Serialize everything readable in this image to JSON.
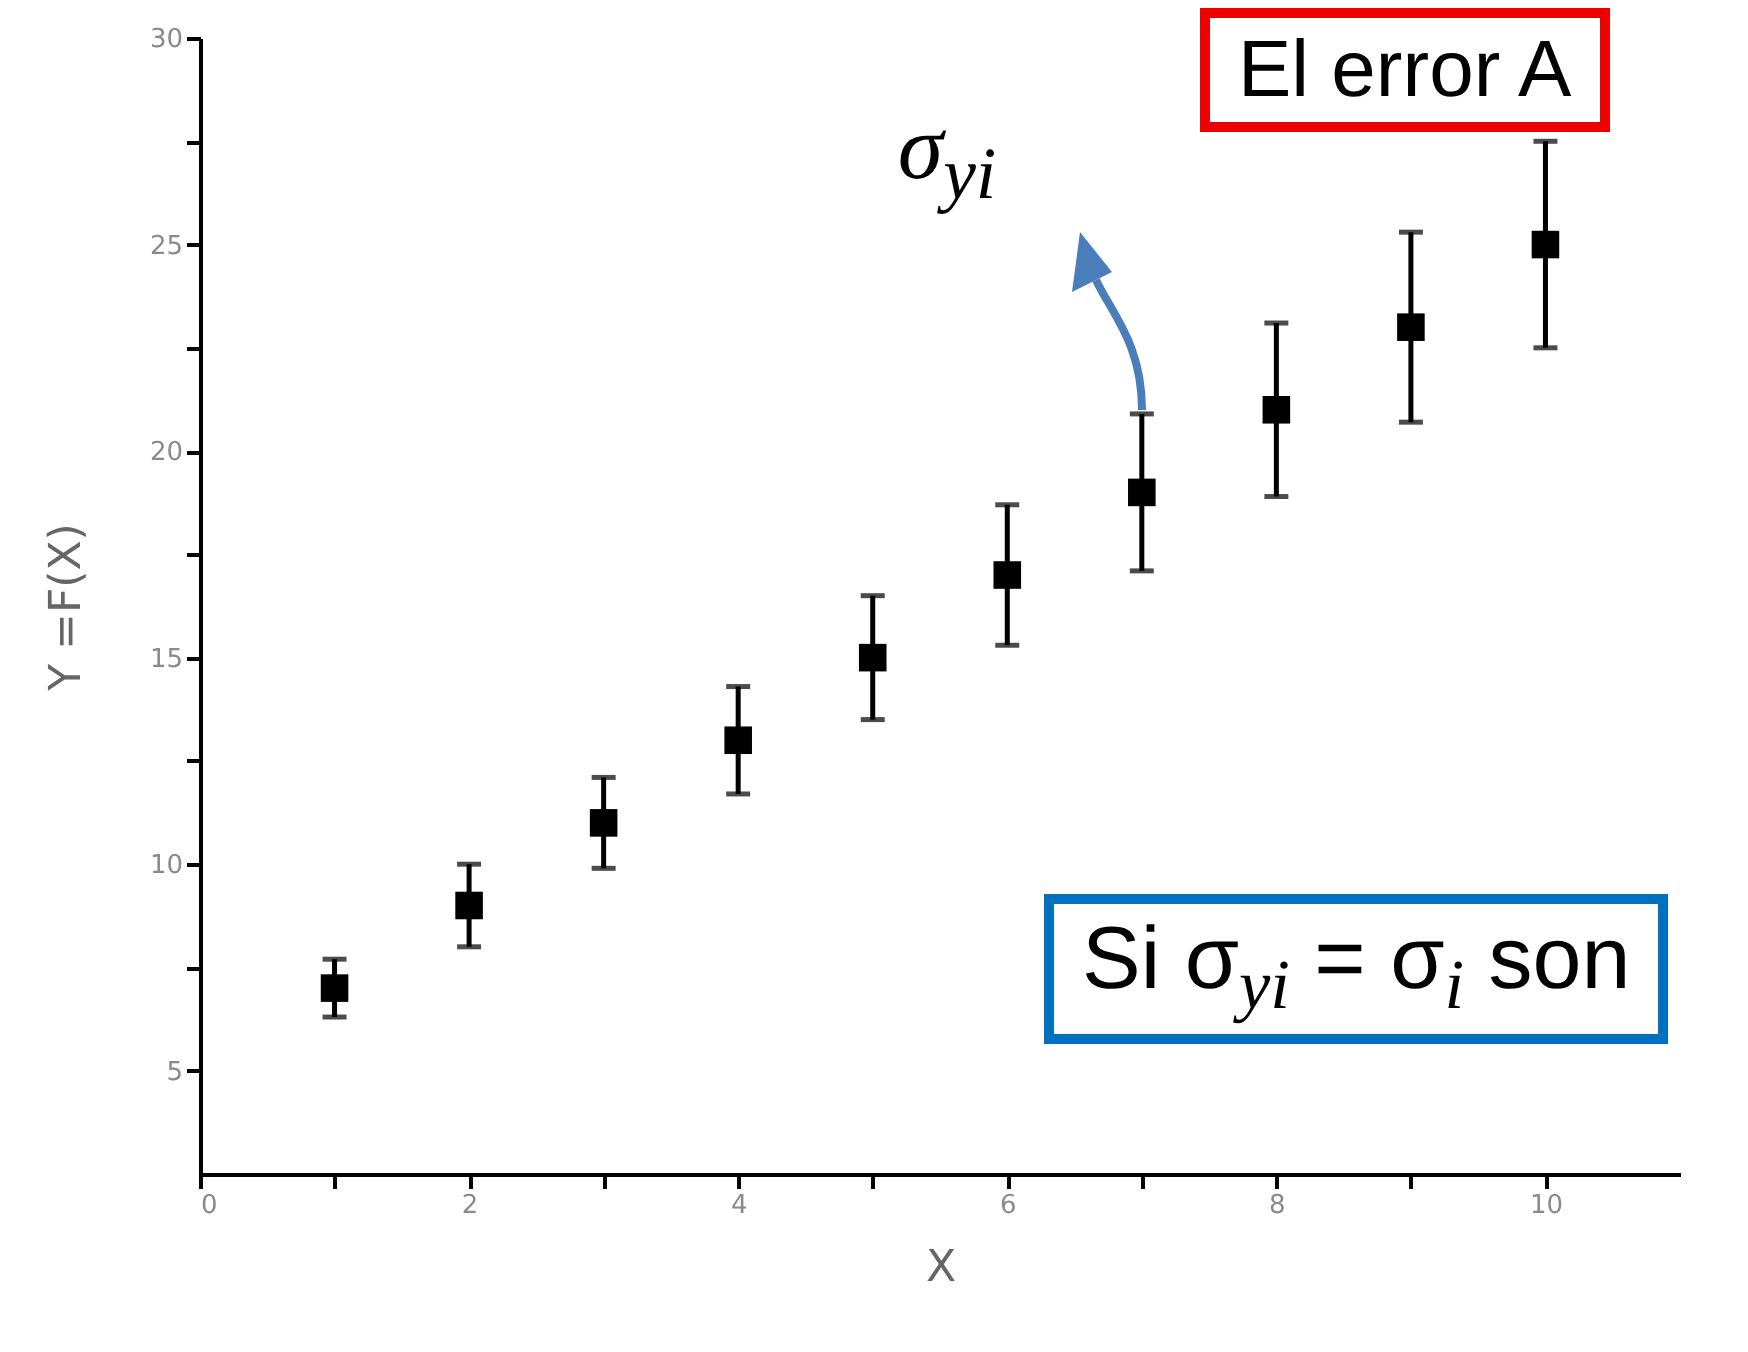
{
  "chart_data": {
    "type": "scatter",
    "xlabel": "X",
    "ylabel": "Y =F(X)",
    "x": [
      1,
      2,
      3,
      4,
      5,
      6,
      7,
      8,
      9,
      10
    ],
    "values": [
      7,
      9,
      11,
      13,
      15,
      17,
      19,
      21,
      23,
      25
    ],
    "errors": [
      0.7,
      1,
      1.1,
      1.3,
      1.5,
      1.7,
      1.9,
      2.1,
      2.3,
      2.5
    ],
    "color": "#000000",
    "marker": "square",
    "xlim": [
      0,
      11
    ],
    "xticks": [
      0,
      {
        "value": 1,
        "label": null
      },
      2,
      {
        "value": 3,
        "label": null
      },
      4,
      {
        "value": 5,
        "label": null
      },
      6,
      {
        "value": 7,
        "label": null
      },
      8,
      {
        "value": 9,
        "label": null
      },
      10
    ],
    "ylim": [
      2.5,
      30
    ],
    "yticks": [
      5,
      {
        "value": 7.5,
        "label": null
      },
      10,
      {
        "value": 12.5,
        "label": null
      },
      15,
      {
        "value": 17.5,
        "label": null
      },
      20,
      {
        "value": 22.5,
        "label": null
      },
      25,
      {
        "value": 27.5,
        "label": null
      },
      30
    ],
    "annotations": [
      {
        "text": "σ$_{yi}$",
        "x": 7,
        "y": 20.9
      },
      "El error A",
      "Si σ$_{yi}$ = σ$_{i}$ son"
    ]
  }
}
